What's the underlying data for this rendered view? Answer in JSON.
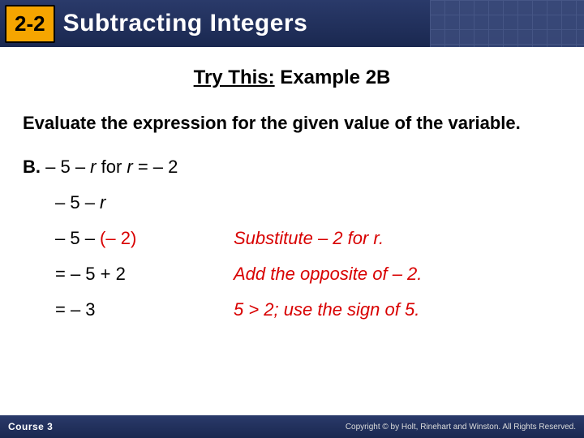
{
  "header": {
    "lesson_number": "2-2",
    "title": "Subtracting Integers",
    "bg_gradient_top": "#2a3a6a",
    "bg_gradient_bottom": "#1a2850",
    "chip_bg": "#f5a500"
  },
  "try_this": {
    "prefix": "Try This:",
    "suffix": " Example 2B"
  },
  "instruction": "Evaluate the expression for the given value of the variable.",
  "question": {
    "label": "B.",
    "expr_part1": "– 5 – ",
    "expr_var1": "r",
    "expr_mid": " for ",
    "expr_var2": "r",
    "expr_part2": " = – 2"
  },
  "steps": [
    {
      "lhs_plain": "– 5 – ",
      "lhs_ital": "r",
      "lhs_red": "",
      "rhs": ""
    },
    {
      "lhs_plain": "– 5 – ",
      "lhs_ital": "",
      "lhs_red": "(– 2)",
      "rhs": "Substitute – 2 for r."
    },
    {
      "lhs_plain": "= – 5 + 2",
      "lhs_ital": "",
      "lhs_red": "",
      "rhs": "Add the opposite of – 2."
    },
    {
      "lhs_plain": "= – 3",
      "lhs_ital": "",
      "lhs_red": "",
      "rhs": "5 > 2; use the sign of 5."
    }
  ],
  "footer": {
    "course": "Course 3",
    "copyright": "Copyright © by Holt, Rinehart and Winston. All Rights Reserved."
  }
}
